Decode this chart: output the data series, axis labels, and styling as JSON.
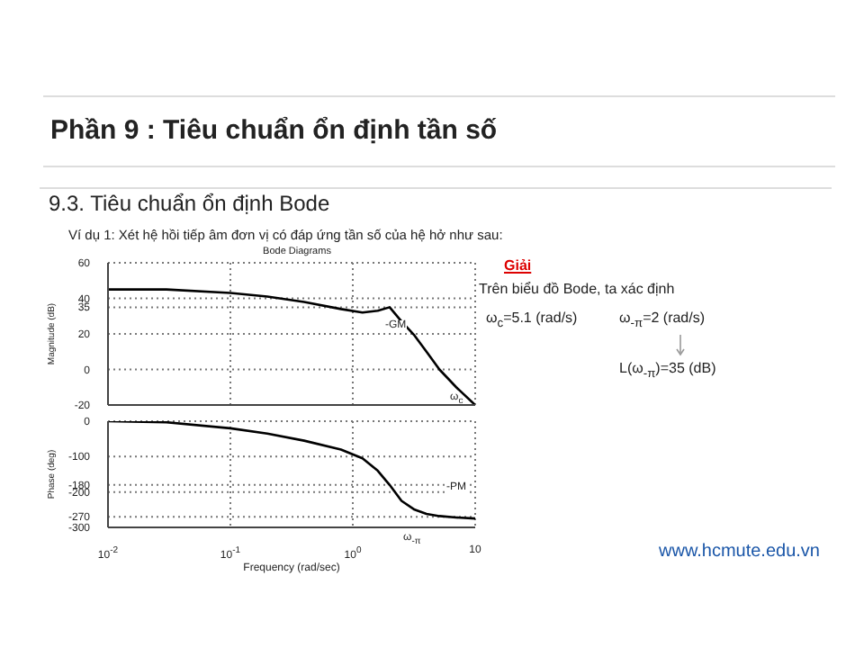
{
  "chart_data": [
    {
      "type": "line",
      "title": "Bode Diagrams",
      "ylabel": "Magnitude (dB)",
      "x": [
        0.01,
        0.03,
        0.1,
        0.2,
        0.4,
        0.8,
        1.2,
        1.6,
        2,
        2.5,
        3.2,
        4,
        5.1,
        7,
        10
      ],
      "series": [
        {
          "color": "#000000",
          "values": [
            45,
            45,
            43,
            41,
            38,
            34,
            32,
            33,
            35,
            27,
            19,
            10,
            0,
            -10,
            -20
          ]
        }
      ],
      "xlim": [
        0.01,
        10
      ],
      "xticks": [
        0.01,
        0.1,
        1,
        10
      ],
      "ylim": [
        -20,
        60
      ],
      "yticks": [
        -20,
        0,
        20,
        35,
        40,
        60
      ],
      "log": "x",
      "grid": true,
      "tick_labels": "y",
      "marker": "none",
      "annotations": [
        "Phần 9 : Tiêu chuẩn ổn định tần số",
        "9.3. Tiêu chuẩn ổn định Bode",
        "Ví dụ 1: Xét hệ hồi tiếp âm đơn vị có đáp ứng tần số của hệ hở như sau:",
        "Giải",
        "Trên biểu đồ Bode, ta xác định",
        "ω$_{c}$=5.1 (rad/s)",
        "ω$_{-π}$=2 (rad/s)",
        "L(ω$_{-π}$)=35 (dB)",
        "www.hcmute.edu.vn",
        "-GM",
        "ω$_{c}$"
      ]
    },
    {
      "type": "line",
      "xlabel": "Frequency (rad/sec)",
      "ylabel": "Phase (deg)",
      "x": [
        0.01,
        0.03,
        0.1,
        0.2,
        0.4,
        0.8,
        1.2,
        1.6,
        2,
        2.5,
        3.2,
        4,
        5.1,
        7,
        10
      ],
      "series": [
        {
          "color": "#000000",
          "values": [
            0,
            -3,
            -20,
            -35,
            -55,
            -80,
            -105,
            -140,
            -180,
            -225,
            -250,
            -262,
            -268,
            -272,
            -275
          ]
        }
      ],
      "xlim": [
        0.01,
        10
      ],
      "xticks": [
        {
          "value": 0.01,
          "label": "10$^{-2}$"
        },
        {
          "value": 0.1,
          "label": "10$^{-1}$"
        },
        {
          "value": 1,
          "label": "10$^{0}$"
        },
        {
          "value": 10,
          "label": "10"
        }
      ],
      "ylim": [
        -300,
        0
      ],
      "yticks": [
        -300,
        -270,
        -200,
        -180,
        -100,
        0
      ],
      "log": "x",
      "grid": true,
      "marker": "none",
      "annotations": [
        "-PM",
        "ω$_{-π}$"
      ]
    }
  ]
}
